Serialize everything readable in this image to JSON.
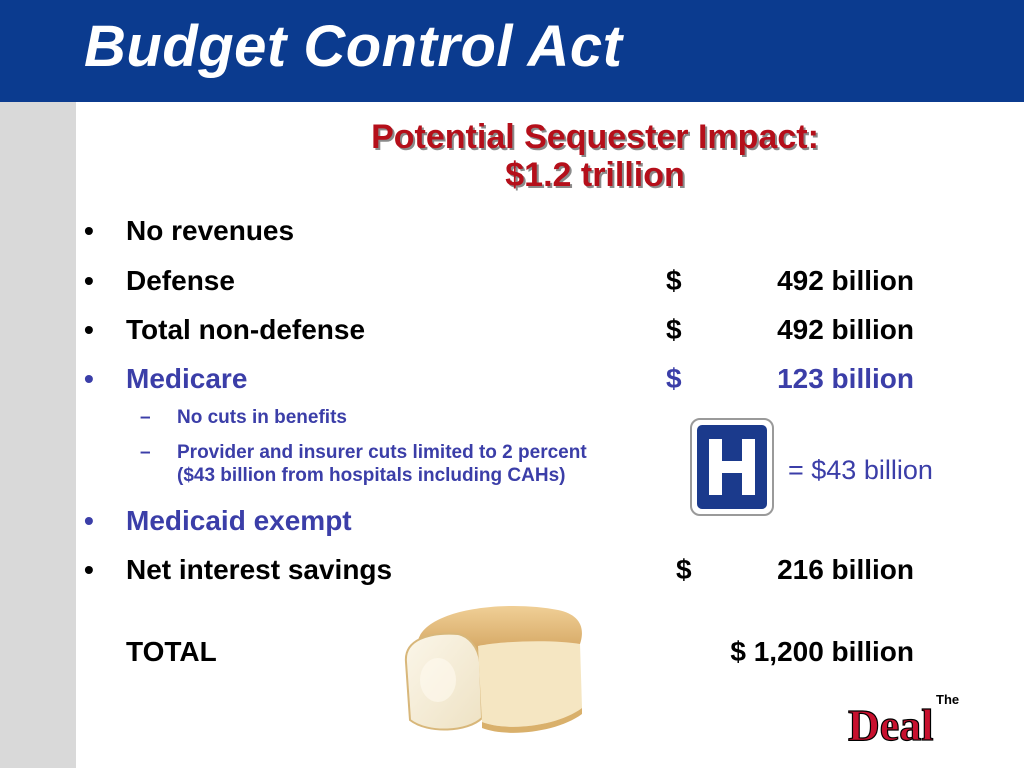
{
  "slide": {
    "title": "Budget Control Act",
    "subtitle_line1": "Potential Sequester Impact:",
    "subtitle_line2": "$1.2 trillion"
  },
  "items": [
    {
      "bullet": "•",
      "label": "No revenues",
      "dollar": "",
      "amount": ""
    },
    {
      "bullet": "•",
      "label": "Defense",
      "dollar": "$",
      "amount": "492 billion"
    },
    {
      "bullet": "•",
      "label": "Total non-defense",
      "dollar": "$",
      "amount": "492 billion"
    },
    {
      "bullet": "•",
      "label": "Medicare",
      "dollar": "$",
      "amount": "123 billion"
    },
    {
      "bullet": "•",
      "label": "Medicaid exempt",
      "dollar": "",
      "amount": ""
    },
    {
      "bullet": "•",
      "label": "Net interest savings",
      "dollar": "$",
      "amount": "216 billion"
    }
  ],
  "medicare_sub": [
    {
      "dash": "–",
      "line1": "No cuts in benefits",
      "line2": ""
    },
    {
      "dash": "–",
      "line1": "Provider and insurer cuts limited to 2 percent",
      "line2": "($43 billion from hospitals including CAHs)"
    }
  ],
  "hospital": {
    "sign_letter": "H",
    "equals_text": "= $43 billion"
  },
  "total": {
    "label": "TOTAL",
    "amount": "$ 1,200 billion"
  },
  "logo": {
    "small": "The",
    "big": "Deal"
  },
  "colors": {
    "header_blue": "#0b3b8f",
    "subtitle_red": "#b50f1a",
    "purple_text": "#3b3ea8",
    "sign_blue": "#1b3a8c",
    "logo_red": "#c8102e"
  },
  "images": {
    "bread": "bread-loaf-image",
    "hospital": "hospital-sign-icon"
  }
}
